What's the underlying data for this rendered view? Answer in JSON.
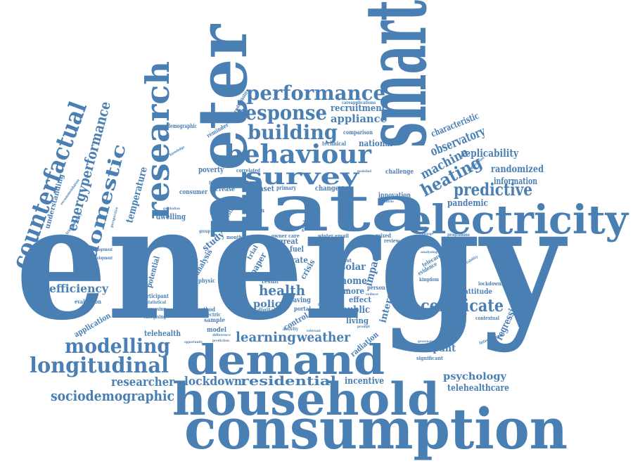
{
  "word_cloud": {
    "color": "#4a7fb3",
    "words": [
      {
        "text": "energy"
      },
      {
        "text": "smart"
      },
      {
        "text": "meter"
      },
      {
        "text": "data"
      },
      {
        "text": "consumption"
      },
      {
        "text": "household"
      },
      {
        "text": "electricity"
      },
      {
        "text": "demand"
      },
      {
        "text": "research"
      },
      {
        "text": "counterfactual"
      },
      {
        "text": "behaviour"
      },
      {
        "text": "survey"
      },
      {
        "text": "performance"
      },
      {
        "text": "response"
      },
      {
        "text": "building"
      },
      {
        "text": "domestic"
      },
      {
        "text": "energyperformance"
      },
      {
        "text": "longitudinal"
      },
      {
        "text": "modelling"
      },
      {
        "text": "residential"
      },
      {
        "text": "lockdown"
      },
      {
        "text": "sociodemographic"
      },
      {
        "text": "researcher"
      },
      {
        "text": "certificate"
      },
      {
        "text": "predictive"
      },
      {
        "text": "heating"
      },
      {
        "text": "machine"
      },
      {
        "text": "observatory"
      },
      {
        "text": "replicability"
      },
      {
        "text": "randomized"
      },
      {
        "text": "information"
      },
      {
        "text": "pandemic"
      },
      {
        "text": "characteristic"
      },
      {
        "text": "appliance"
      },
      {
        "text": "recruitment"
      },
      {
        "text": "national"
      },
      {
        "text": "efficiency"
      },
      {
        "text": "temperature"
      },
      {
        "text": "understanding"
      },
      {
        "text": "health"
      },
      {
        "text": "policy"
      },
      {
        "text": "learning"
      },
      {
        "text": "weather"
      },
      {
        "text": "solar"
      },
      {
        "text": "home"
      },
      {
        "text": "impact"
      },
      {
        "text": "interest"
      },
      {
        "text": "occupant"
      },
      {
        "text": "psychology"
      },
      {
        "text": "telehealthcare"
      },
      {
        "text": "incentive"
      },
      {
        "text": "regression"
      },
      {
        "text": "improving"
      },
      {
        "text": "attitude"
      },
      {
        "text": "application"
      },
      {
        "text": "telehealth"
      },
      {
        "text": "public"
      },
      {
        "text": "living"
      },
      {
        "text": "effect"
      },
      {
        "text": "more"
      },
      {
        "text": "study"
      },
      {
        "text": "analysis"
      },
      {
        "text": "potential"
      },
      {
        "text": "dwelling"
      },
      {
        "text": "poverty"
      },
      {
        "text": "consumer"
      },
      {
        "text": "increase"
      },
      {
        "text": "dataset"
      },
      {
        "text": "primary"
      },
      {
        "text": "change"
      },
      {
        "text": "innovation"
      },
      {
        "text": "challenge"
      },
      {
        "text": "britain"
      },
      {
        "text": "industry"
      },
      {
        "text": "paper"
      },
      {
        "text": "crisis"
      },
      {
        "text": "rate"
      },
      {
        "text": "fuel"
      },
      {
        "text": "great"
      },
      {
        "text": "trial"
      },
      {
        "text": "radiation"
      },
      {
        "text": "control"
      },
      {
        "text": "saving"
      },
      {
        "text": "portal"
      },
      {
        "text": "digital"
      },
      {
        "text": "result"
      },
      {
        "text": "model"
      },
      {
        "text": "sample"
      },
      {
        "text": "method"
      },
      {
        "text": "electric"
      },
      {
        "text": "physic"
      },
      {
        "text": "benefit"
      },
      {
        "text": "intensity"
      },
      {
        "text": "participant"
      },
      {
        "text": "statistical"
      },
      {
        "text": "increasing"
      },
      {
        "text": "energising"
      },
      {
        "text": "evaluation"
      },
      {
        "text": "arrangement"
      },
      {
        "text": "development"
      },
      {
        "text": "demographic"
      },
      {
        "text": "reminder"
      },
      {
        "text": "technical"
      },
      {
        "text": "comparison"
      },
      {
        "text": "reproducibility"
      },
      {
        "text": "careapplications"
      },
      {
        "text": "correlated"
      },
      {
        "text": "particular"
      },
      {
        "text": "england"
      },
      {
        "text": "mixed"
      },
      {
        "text": "winter"
      },
      {
        "text": "email"
      },
      {
        "text": "owner"
      },
      {
        "text": "care"
      },
      {
        "text": "month"
      },
      {
        "text": "cost"
      },
      {
        "text": "review"
      },
      {
        "text": "person"
      },
      {
        "text": "barrier"
      },
      {
        "text": "kingdom"
      },
      {
        "text": "evidence"
      },
      {
        "text": "telecare"
      },
      {
        "text": "lockdowns"
      },
      {
        "text": "contextual"
      },
      {
        "text": "international"
      },
      {
        "text": "significant"
      },
      {
        "text": "programme"
      },
      {
        "text": "vulnerability"
      },
      {
        "text": "analysing"
      },
      {
        "text": "organization"
      },
      {
        "text": "recommendation"
      },
      {
        "text": "transparency"
      },
      {
        "text": "perspective"
      },
      {
        "text": "knowledge"
      },
      {
        "text": "gatchalian"
      },
      {
        "text": "group"
      },
      {
        "text": "activity"
      },
      {
        "text": "relevant"
      },
      {
        "text": "difference"
      },
      {
        "text": "prediction"
      },
      {
        "text": "opportunity"
      },
      {
        "text": "governance"
      },
      {
        "text": "consequence"
      },
      {
        "text": "resistance"
      },
      {
        "text": "engage"
      },
      {
        "text": "modelled"
      },
      {
        "text": "housing"
      },
      {
        "text": "countrie"
      },
      {
        "text": "reduce"
      },
      {
        "text": "prompt"
      },
      {
        "text": "panel"
      },
      {
        "text": "privacy"
      }
    ]
  }
}
